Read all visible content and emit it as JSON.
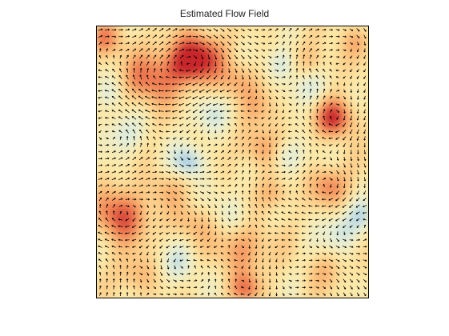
{
  "chart_data": {
    "type": "heatmap",
    "title": "Estimated Flow Field",
    "xlabel": "",
    "ylabel": "",
    "xlim": [
      0,
      1
    ],
    "ylim": [
      0,
      1
    ],
    "grid": false,
    "legend": "none",
    "colorscale": [
      "#4a90c8",
      "#a9cfe6",
      "#e6efd8",
      "#fde8a6",
      "#fcbf7a",
      "#ef7d52",
      "#c8262c"
    ],
    "vector_color": "#000000",
    "grid_size": 40,
    "vortices": [
      {
        "x": 0.09,
        "y": 0.7,
        "strength": 0.85,
        "radius": 0.07
      },
      {
        "x": 0.34,
        "y": 0.13,
        "strength": 1.0,
        "radius": 0.06
      },
      {
        "x": 0.88,
        "y": 0.34,
        "strength": 0.95,
        "radius": 0.05
      },
      {
        "x": 0.86,
        "y": 0.59,
        "strength": 0.6,
        "radius": 0.05
      },
      {
        "x": 0.54,
        "y": 0.82,
        "strength": 0.55,
        "radius": 0.07
      },
      {
        "x": 0.6,
        "y": 0.45,
        "strength": 0.55,
        "radius": 0.05
      },
      {
        "x": 0.2,
        "y": 0.2,
        "strength": 0.7,
        "radius": 0.07
      },
      {
        "x": 0.52,
        "y": 0.2,
        "strength": 0.5,
        "radius": 0.05
      },
      {
        "x": 0.03,
        "y": 0.05,
        "strength": 0.6,
        "radius": 0.05
      },
      {
        "x": 0.55,
        "y": 0.97,
        "strength": 0.6,
        "radius": 0.04
      },
      {
        "x": 0.4,
        "y": 0.1,
        "strength": 0.45,
        "radius": 0.06
      },
      {
        "x": 0.35,
        "y": 0.73,
        "strength": 0.4,
        "radius": 0.05
      },
      {
        "x": 0.15,
        "y": 0.92,
        "strength": 0.45,
        "radius": 0.05
      },
      {
        "x": 0.96,
        "y": 0.06,
        "strength": 0.4,
        "radius": 0.04
      },
      {
        "x": 0.8,
        "y": 0.14,
        "strength": 0.4,
        "radius": 0.05
      },
      {
        "x": 0.66,
        "y": 0.62,
        "strength": 0.45,
        "radius": 0.04
      },
      {
        "x": 0.34,
        "y": 0.5,
        "strength": -0.7,
        "radius": 0.04
      },
      {
        "x": 0.68,
        "y": 0.14,
        "strength": -0.45,
        "radius": 0.04
      },
      {
        "x": 0.1,
        "y": 0.4,
        "strength": -0.4,
        "radius": 0.05
      },
      {
        "x": 0.78,
        "y": 0.22,
        "strength": -0.45,
        "radius": 0.05
      },
      {
        "x": 0.9,
        "y": 0.76,
        "strength": -0.45,
        "radius": 0.05
      },
      {
        "x": 0.7,
        "y": 0.48,
        "strength": -0.45,
        "radius": 0.04
      },
      {
        "x": 0.42,
        "y": 0.33,
        "strength": -0.35,
        "radius": 0.05
      },
      {
        "x": 0.3,
        "y": 0.88,
        "strength": -0.4,
        "radius": 0.05
      },
      {
        "x": 0.05,
        "y": 0.25,
        "strength": -0.35,
        "radius": 0.04
      },
      {
        "x": 0.98,
        "y": 0.7,
        "strength": -0.4,
        "radius": 0.04
      },
      {
        "x": 0.5,
        "y": 0.7,
        "strength": -0.3,
        "radius": 0.05
      },
      {
        "x": 0.62,
        "y": 0.3,
        "strength": 0.35,
        "radius": 0.05
      },
      {
        "x": 0.25,
        "y": 0.6,
        "strength": 0.3,
        "radius": 0.05
      },
      {
        "x": 0.85,
        "y": 0.9,
        "strength": 0.3,
        "radius": 0.05
      }
    ]
  }
}
